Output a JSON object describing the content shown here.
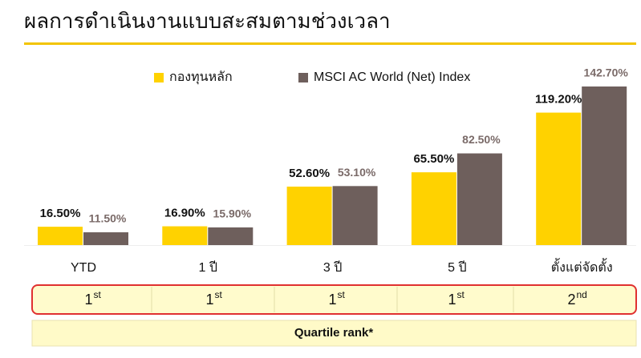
{
  "chart_data": {
    "type": "bar",
    "title": "ผลการดำเนินงานแบบสะสมตามช่วงเวลา",
    "categories": [
      "YTD",
      "1 ปี",
      "3 ปี",
      "5 ปี",
      "ตั้งแต่จัดตั้ง"
    ],
    "series": [
      {
        "name": "กองทุนหลัก",
        "color": "#ffd200",
        "label_color": "#111111",
        "values": [
          16.5,
          16.9,
          52.6,
          65.5,
          119.2
        ],
        "value_labels": [
          "16.50%",
          "16.90%",
          "52.60%",
          "65.50%",
          "119.20%"
        ]
      },
      {
        "name": "MSCI AC World (Net) Index",
        "color": "#6e5f5c",
        "label_color": "#7a6a68",
        "values": [
          11.5,
          15.9,
          53.1,
          82.5,
          142.7
        ],
        "value_labels": [
          "11.50%",
          "15.90%",
          "53.10%",
          "82.50%",
          "142.70%"
        ]
      }
    ],
    "quartile_ranks": [
      {
        "rank": "1",
        "suffix": "st"
      },
      {
        "rank": "1",
        "suffix": "st"
      },
      {
        "rank": "1",
        "suffix": "st"
      },
      {
        "rank": "1",
        "suffix": "st"
      },
      {
        "rank": "2",
        "suffix": "nd"
      }
    ],
    "quartile_label": "Quartile rank*"
  }
}
